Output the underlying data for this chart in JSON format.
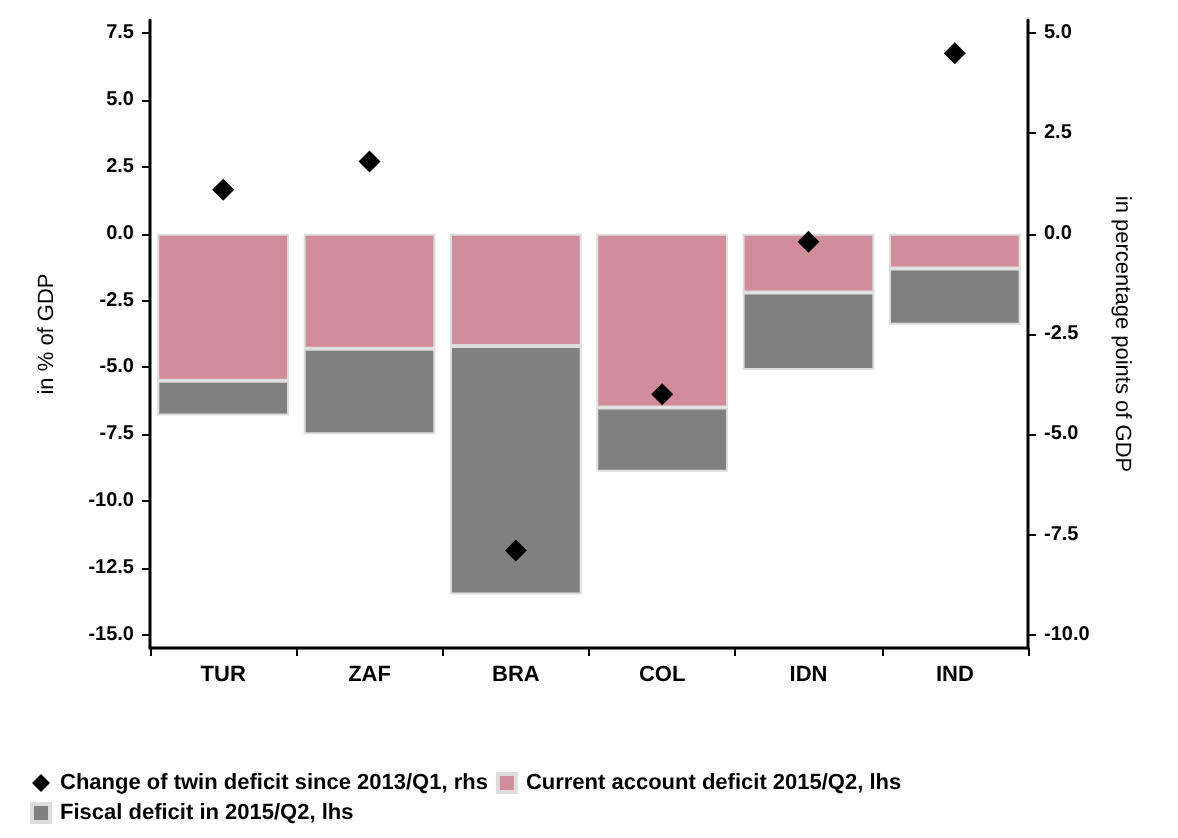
{
  "chart_data": {
    "type": "bar",
    "stacked": true,
    "categories": [
      "TUR",
      "ZAF",
      "BRA",
      "COL",
      "IDN",
      "IND"
    ],
    "ylabel": "in % of GDP",
    "y2label": "in percentage points of GDP",
    "ylim": [
      -15.5,
      8
    ],
    "yticks": [
      {
        "value": -15,
        "label": "-15.0"
      },
      {
        "value": -12.5,
        "label": "-12.5"
      },
      {
        "value": -10,
        "label": "-10.0"
      },
      {
        "value": -7.5,
        "label": "-7.5"
      },
      {
        "value": -5,
        "label": "-5.0"
      },
      {
        "value": -2.5,
        "label": "-2.5"
      },
      {
        "value": 0,
        "label": "0.0"
      },
      {
        "value": 2.5,
        "label": "2.5"
      },
      {
        "value": 5,
        "label": "5.0"
      },
      {
        "value": 7.5,
        "label": "7.5"
      }
    ],
    "y2lim": [
      -10.33,
      5.33
    ],
    "y2ticks": [
      {
        "value": -10,
        "label": "-10.0"
      },
      {
        "value": -7.5,
        "label": "-7.5"
      },
      {
        "value": -5,
        "label": "-5.0"
      },
      {
        "value": -2.5,
        "label": "-2.5"
      },
      {
        "value": 0,
        "label": "0.0"
      },
      {
        "value": 2.5,
        "label": "2.5"
      },
      {
        "value": 5,
        "label": "5.0"
      }
    ],
    "series": [
      {
        "name": "Change of twin deficit since 2013/Q1, rhs",
        "type": "scatter",
        "axis": "y2",
        "marker": "diamond",
        "color": "#000000",
        "x": [
          "TUR",
          "ZAF",
          "BRA",
          "COL",
          "IDN",
          "IND"
        ],
        "values": [
          1.1,
          1.8,
          -7.9,
          -4.0,
          -0.2,
          4.5
        ]
      },
      {
        "name": "Current account deficit 2015/Q2, lhs",
        "color": "#d08c98",
        "values": [
          -5.5,
          -4.3,
          -4.2,
          -6.5,
          -2.2,
          -1.3
        ]
      },
      {
        "name": "Fiscal deficit in 2015/Q2, lhs",
        "color": "#808080",
        "values": [
          -1.3,
          -3.2,
          -9.3,
          -2.4,
          -2.9,
          -2.1
        ]
      }
    ],
    "grid": false,
    "legend": "bottom"
  }
}
